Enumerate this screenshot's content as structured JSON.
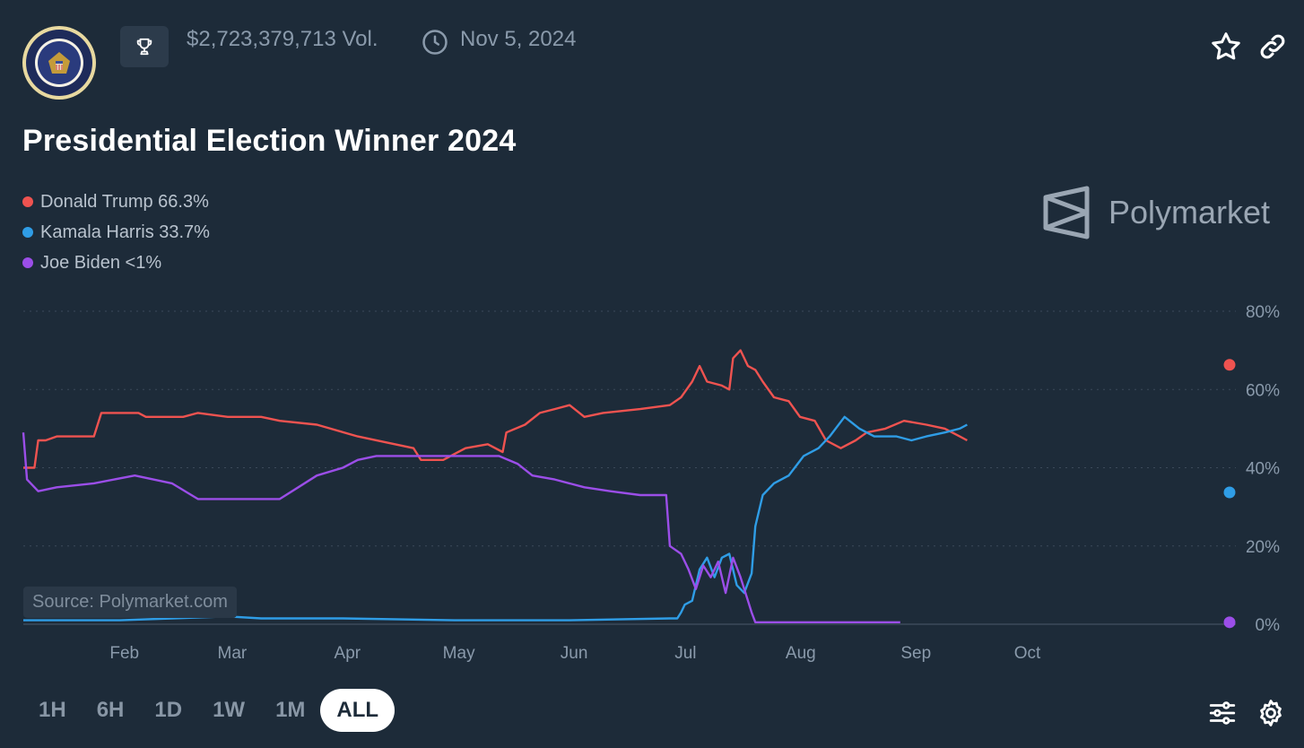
{
  "header": {
    "volume": "$2,723,379,713 Vol.",
    "end_date": "Nov 5, 2024",
    "seal_icon": "presidential-seal-icon",
    "trophy_icon": "trophy-icon",
    "clock_icon": "clock-icon",
    "star_icon": "star-icon",
    "link_icon": "link-icon"
  },
  "title": "Presidential Election Winner 2024",
  "legend": [
    {
      "label": "Donald Trump 66.3%",
      "color": "#ef5350"
    },
    {
      "label": "Kamala Harris 33.7%",
      "color": "#2f9de6"
    },
    {
      "label": "Joe Biden <1%",
      "color": "#9b4ee8"
    }
  ],
  "brand": {
    "name": "Polymarket",
    "icon": "polymarket-logo-icon"
  },
  "source_label": "Source: Polymarket.com",
  "time_tabs": [
    {
      "label": "1H",
      "active": false
    },
    {
      "label": "6H",
      "active": false
    },
    {
      "label": "1D",
      "active": false
    },
    {
      "label": "1W",
      "active": false
    },
    {
      "label": "1M",
      "active": false
    },
    {
      "label": "ALL",
      "active": true
    }
  ],
  "footer_icons": {
    "filter": "sliders-icon",
    "settings": "gear-icon"
  },
  "colors": {
    "background": "#1d2b39",
    "grid": "#3c4a5a",
    "muted_text": "#8a9aab"
  },
  "chart_data": {
    "type": "line",
    "y_ticks": [
      "80%",
      "60%",
      "40%",
      "20%",
      "0%"
    ],
    "y_tick_values": [
      80,
      60,
      40,
      20,
      0
    ],
    "ylim": [
      0,
      80
    ],
    "x_start": "2024-01-06",
    "x_end": "2024-10-25",
    "x_tick_labels": [
      {
        "date": "2024-02-01",
        "label": "Feb"
      },
      {
        "date": "2024-03-01",
        "label": "Mar"
      },
      {
        "date": "2024-04-01",
        "label": "Apr"
      },
      {
        "date": "2024-05-01",
        "label": "May"
      },
      {
        "date": "2024-06-01",
        "label": "Jun"
      },
      {
        "date": "2024-07-01",
        "label": "Jul"
      },
      {
        "date": "2024-08-01",
        "label": "Aug"
      },
      {
        "date": "2024-09-01",
        "label": "Sep"
      },
      {
        "date": "2024-10-01",
        "label": "Oct"
      }
    ],
    "grid": true,
    "series": [
      {
        "name": "Donald Trump",
        "color": "#ef5350",
        "current_value": 66.3,
        "points": [
          [
            "2024-01-06",
            40
          ],
          [
            "2024-01-09",
            40
          ],
          [
            "2024-01-10",
            47
          ],
          [
            "2024-01-12",
            47
          ],
          [
            "2024-01-15",
            48
          ],
          [
            "2024-01-25",
            48
          ],
          [
            "2024-01-27",
            54
          ],
          [
            "2024-02-06",
            54
          ],
          [
            "2024-02-08",
            53
          ],
          [
            "2024-02-18",
            53
          ],
          [
            "2024-02-22",
            54
          ],
          [
            "2024-03-01",
            53
          ],
          [
            "2024-03-10",
            53
          ],
          [
            "2024-03-15",
            52
          ],
          [
            "2024-03-25",
            51
          ],
          [
            "2024-04-05",
            48
          ],
          [
            "2024-04-15",
            46
          ],
          [
            "2024-04-20",
            45
          ],
          [
            "2024-04-22",
            42
          ],
          [
            "2024-04-28",
            42
          ],
          [
            "2024-05-04",
            45
          ],
          [
            "2024-05-10",
            46
          ],
          [
            "2024-05-14",
            44
          ],
          [
            "2024-05-15",
            49
          ],
          [
            "2024-05-20",
            51
          ],
          [
            "2024-05-24",
            54
          ],
          [
            "2024-05-28",
            55
          ],
          [
            "2024-06-01",
            56
          ],
          [
            "2024-06-05",
            53
          ],
          [
            "2024-06-10",
            54
          ],
          [
            "2024-06-20",
            55
          ],
          [
            "2024-06-28",
            56
          ],
          [
            "2024-07-01",
            58
          ],
          [
            "2024-07-04",
            62
          ],
          [
            "2024-07-06",
            66
          ],
          [
            "2024-07-08",
            62
          ],
          [
            "2024-07-12",
            61
          ],
          [
            "2024-07-14",
            60
          ],
          [
            "2024-07-15",
            68
          ],
          [
            "2024-07-17",
            70
          ],
          [
            "2024-07-19",
            66
          ],
          [
            "2024-07-21",
            65
          ],
          [
            "2024-07-23",
            62
          ],
          [
            "2024-07-26",
            58
          ],
          [
            "2024-07-30",
            57
          ],
          [
            "2024-08-02",
            53
          ],
          [
            "2024-08-06",
            52
          ],
          [
            "2024-08-09",
            47
          ],
          [
            "2024-08-13",
            45
          ],
          [
            "2024-08-17",
            47
          ],
          [
            "2024-08-20",
            49
          ],
          [
            "2024-08-25",
            50
          ],
          [
            "2024-08-30",
            52
          ],
          [
            "2024-09-05",
            51
          ],
          [
            "2024-09-10",
            50
          ],
          [
            "2024-09-14",
            48
          ],
          [
            "2024-09-16",
            47
          ]
        ]
      },
      {
        "name": "Kamala Harris",
        "color": "#2f9de6",
        "current_value": 33.7,
        "points": [
          [
            "2024-01-06",
            1
          ],
          [
            "2024-01-15",
            1
          ],
          [
            "2024-02-01",
            1
          ],
          [
            "2024-02-15",
            1.5
          ],
          [
            "2024-03-01",
            2
          ],
          [
            "2024-03-10",
            1.5
          ],
          [
            "2024-04-01",
            1.5
          ],
          [
            "2024-05-01",
            1
          ],
          [
            "2024-06-01",
            1
          ],
          [
            "2024-06-28",
            1.5
          ],
          [
            "2024-06-30",
            1.5
          ],
          [
            "2024-07-01",
            3
          ],
          [
            "2024-07-02",
            5
          ],
          [
            "2024-07-04",
            6
          ],
          [
            "2024-07-06",
            14
          ],
          [
            "2024-07-08",
            17
          ],
          [
            "2024-07-10",
            12
          ],
          [
            "2024-07-12",
            17
          ],
          [
            "2024-07-14",
            18
          ],
          [
            "2024-07-16",
            10
          ],
          [
            "2024-07-18",
            8
          ],
          [
            "2024-07-20",
            13
          ],
          [
            "2024-07-21",
            25
          ],
          [
            "2024-07-23",
            33
          ],
          [
            "2024-07-26",
            36
          ],
          [
            "2024-07-30",
            38
          ],
          [
            "2024-08-03",
            43
          ],
          [
            "2024-08-07",
            45
          ],
          [
            "2024-08-10",
            48
          ],
          [
            "2024-08-14",
            53
          ],
          [
            "2024-08-18",
            50
          ],
          [
            "2024-08-22",
            48
          ],
          [
            "2024-08-28",
            48
          ],
          [
            "2024-09-01",
            47
          ],
          [
            "2024-09-05",
            48
          ],
          [
            "2024-09-10",
            49
          ],
          [
            "2024-09-14",
            50
          ],
          [
            "2024-09-16",
            51
          ]
        ]
      },
      {
        "name": "Joe Biden",
        "color": "#9b4ee8",
        "current_value": 0.5,
        "points": [
          [
            "2024-01-06",
            49
          ],
          [
            "2024-01-07",
            37
          ],
          [
            "2024-01-10",
            34
          ],
          [
            "2024-01-15",
            35
          ],
          [
            "2024-01-25",
            36
          ],
          [
            "2024-02-05",
            38
          ],
          [
            "2024-02-15",
            36
          ],
          [
            "2024-02-22",
            32
          ],
          [
            "2024-03-01",
            32
          ],
          [
            "2024-03-15",
            32
          ],
          [
            "2024-03-20",
            35
          ],
          [
            "2024-03-25",
            38
          ],
          [
            "2024-04-01",
            40
          ],
          [
            "2024-04-05",
            42
          ],
          [
            "2024-04-10",
            43
          ],
          [
            "2024-04-20",
            43
          ],
          [
            "2024-05-01",
            43
          ],
          [
            "2024-05-13",
            43
          ],
          [
            "2024-05-18",
            41
          ],
          [
            "2024-05-22",
            38
          ],
          [
            "2024-05-28",
            37
          ],
          [
            "2024-06-05",
            35
          ],
          [
            "2024-06-12",
            34
          ],
          [
            "2024-06-20",
            33
          ],
          [
            "2024-06-27",
            33
          ],
          [
            "2024-06-28",
            20
          ],
          [
            "2024-07-01",
            18
          ],
          [
            "2024-07-03",
            14
          ],
          [
            "2024-07-05",
            9
          ],
          [
            "2024-07-07",
            15
          ],
          [
            "2024-07-09",
            12
          ],
          [
            "2024-07-11",
            16
          ],
          [
            "2024-07-13",
            8
          ],
          [
            "2024-07-15",
            17
          ],
          [
            "2024-07-17",
            12
          ],
          [
            "2024-07-19",
            6
          ],
          [
            "2024-07-20",
            3
          ],
          [
            "2024-07-21",
            0.5
          ],
          [
            "2024-08-01",
            0.5
          ],
          [
            "2024-08-20",
            0.5
          ],
          [
            "2024-08-29",
            0.5
          ]
        ]
      }
    ]
  }
}
